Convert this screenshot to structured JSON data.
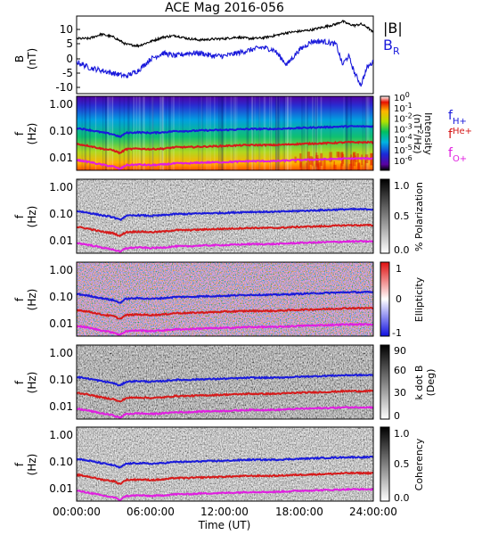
{
  "title": "ACE Mag 2016-056",
  "time_axis": {
    "label": "Time (UT)",
    "ticks": [
      "00:00:00",
      "06:00:00",
      "12:00:00",
      "18:00:00",
      "24:00:00"
    ],
    "range_hours": [
      0,
      24
    ]
  },
  "panels": [
    {
      "key": "field",
      "ylabel_top": "B",
      "ylabel_bottom": "(nT)",
      "yticks": [
        "10",
        "5",
        "0",
        "-5",
        "-10"
      ],
      "legend": [
        "|B|",
        "B"
      ],
      "legend_sub": [
        "",
        "R"
      ],
      "legend_colors": [
        "#000000",
        "#1a1adb"
      ]
    },
    {
      "key": "power",
      "ylabel_top": "f",
      "ylabel_bottom": "(Hz)",
      "yticks": [
        "1.00",
        "0.10",
        "0.01"
      ],
      "cbar_ticks": [
        "10",
        "10",
        "10",
        "10",
        "10",
        "10",
        "10"
      ],
      "cbar_exps": [
        "0",
        "-1",
        "-2",
        "-3",
        "-4",
        "-5",
        "-6"
      ],
      "cbar_label_a": "Intensity",
      "cbar_label_b": "(nT",
      "cbar_label_c": "/Hz)",
      "cbar_label_exp": "2",
      "cbar_type": "rainbow",
      "freq_legend": [
        "f",
        "f",
        "f"
      ],
      "freq_legend_sub": [
        "H+",
        "He+",
        "O+"
      ],
      "freq_colors": [
        "#1a1adb",
        "#d61a1a",
        "#e01ee0"
      ]
    },
    {
      "key": "polarization",
      "ylabel_top": "f",
      "ylabel_bottom": "(Hz)",
      "yticks": [
        "1.00",
        "0.10",
        "0.01"
      ],
      "cbar_ticks": [
        "1.0",
        "0.5",
        "0.0"
      ],
      "cbar_label": "% Polarization",
      "cbar_type": "gray"
    },
    {
      "key": "ellipticity",
      "ylabel_top": "f",
      "ylabel_bottom": "(Hz)",
      "yticks": [
        "1.00",
        "0.10",
        "0.01"
      ],
      "cbar_ticks": [
        "1",
        "0",
        "-1"
      ],
      "cbar_label": "Ellipticity",
      "cbar_type": "bwr"
    },
    {
      "key": "kdotb",
      "ylabel_top": "f",
      "ylabel_bottom": "(Hz)",
      "yticks": [
        "1.00",
        "0.10",
        "0.01"
      ],
      "cbar_ticks": [
        "90",
        "60",
        "30",
        "0"
      ],
      "cbar_label_a": "k dot B",
      "cbar_label_b": "(Deg)",
      "cbar_type": "gray"
    },
    {
      "key": "coherency",
      "ylabel_top": "f",
      "ylabel_bottom": "(Hz)",
      "yticks": [
        "1.00",
        "0.10",
        "0.01"
      ],
      "cbar_ticks": [
        "1.0",
        "0.5",
        "0.0"
      ],
      "cbar_label": "Coherency",
      "cbar_type": "gray"
    }
  ],
  "chart_data": [
    {
      "type": "line",
      "title": "ACE Mag 2016-056",
      "ylabel": "B (nT)",
      "xlabel": "Time (UT)",
      "ylim": [
        -11,
        15
      ],
      "x": [
        0,
        1,
        2,
        3,
        4,
        5,
        6,
        7,
        8,
        9,
        10,
        11,
        12,
        13,
        14,
        15,
        16,
        17,
        18,
        19,
        20,
        21,
        21.5,
        22,
        22.5,
        23,
        23.5,
        24
      ],
      "series": [
        {
          "name": "|B|",
          "color": "#000000",
          "values": [
            7,
            7,
            8.5,
            7.5,
            5,
            4.5,
            6,
            7.5,
            8,
            7,
            6.5,
            6.8,
            7,
            7.5,
            7,
            7.2,
            8,
            9,
            9.5,
            10,
            11,
            12,
            13,
            12,
            11.5,
            12,
            11,
            9
          ]
        },
        {
          "name": "B_R",
          "color": "#1a1adb",
          "values": [
            -1,
            -3,
            -4,
            -5,
            -6,
            -4,
            0,
            2,
            1,
            2,
            2,
            1,
            1,
            2,
            3,
            4,
            3,
            -2,
            3,
            6,
            6,
            5,
            -2,
            1,
            -5,
            -9,
            -3,
            -1
          ]
        }
      ]
    },
    {
      "type": "heatmap",
      "ylabel": "f (Hz)",
      "xlabel": "Time (UT)",
      "ylim": [
        0.003,
        1.3
      ],
      "yscale": "log",
      "lines": [
        {
          "name": "f_H+",
          "color": "#1a1adb",
          "x": [
            0,
            1,
            2,
            3,
            3.5,
            4,
            5,
            6,
            7,
            8,
            9,
            10,
            12,
            14,
            16,
            18,
            20,
            22,
            24
          ],
          "values": [
            0.13,
            0.11,
            0.09,
            0.075,
            0.06,
            0.085,
            0.09,
            0.085,
            0.09,
            0.1,
            0.1,
            0.105,
            0.11,
            0.12,
            0.12,
            0.13,
            0.14,
            0.15,
            0.15
          ]
        },
        {
          "name": "f_He+",
          "color": "#d61a1a",
          "x": [
            0,
            1,
            2,
            3,
            3.5,
            4,
            5,
            6,
            7,
            8,
            9,
            10,
            12,
            14,
            16,
            18,
            20,
            22,
            24
          ],
          "values": [
            0.033,
            0.028,
            0.022,
            0.019,
            0.015,
            0.021,
            0.022,
            0.021,
            0.022,
            0.025,
            0.025,
            0.026,
            0.028,
            0.03,
            0.03,
            0.033,
            0.035,
            0.038,
            0.038
          ]
        },
        {
          "name": "f_O+",
          "color": "#e01ee0",
          "x": [
            0,
            1,
            2,
            3,
            3.5,
            4,
            5,
            6,
            7,
            8,
            9,
            10,
            12,
            14,
            16,
            18,
            20,
            22,
            24
          ],
          "values": [
            0.0083,
            0.007,
            0.0056,
            0.0047,
            0.0038,
            0.0053,
            0.0056,
            0.0053,
            0.0056,
            0.0062,
            0.0062,
            0.0066,
            0.0069,
            0.0075,
            0.0075,
            0.0083,
            0.0088,
            0.0094,
            0.0094
          ]
        }
      ]
    }
  ]
}
